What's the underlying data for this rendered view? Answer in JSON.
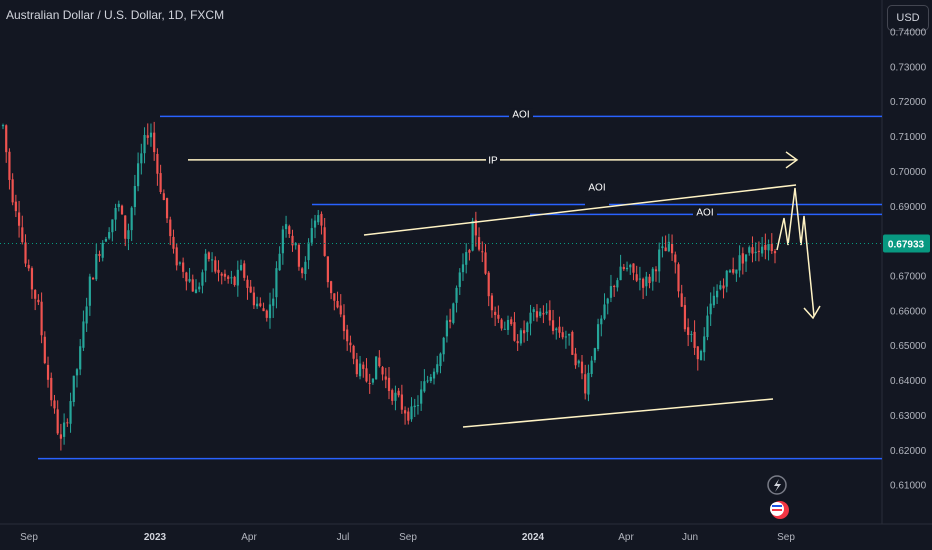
{
  "header": {
    "title": "Australian Dollar / U.S. Dollar, 1D, FXCM",
    "currency_button": "USD"
  },
  "colors": {
    "background": "#131722",
    "up_candle": "#26a69a",
    "down_candle": "#ef5350",
    "aoi_line": "#2962ff",
    "trend_line": "#fff3c4",
    "price_tag": "#089981"
  },
  "icons": [
    "lightning-icon",
    "flag-icon"
  ],
  "chart_data": {
    "type": "candlestick",
    "symbol": "AUDUSD",
    "interval": "1D",
    "y_axis": {
      "ticks": [
        "0.74000",
        "0.73000",
        "0.72000",
        "0.71000",
        "0.70000",
        "0.69000",
        "0.68000",
        "0.67000",
        "0.66000",
        "0.65000",
        "0.64000",
        "0.63000",
        "0.62000",
        "0.61000"
      ],
      "ylim": [
        0.6,
        0.742
      ]
    },
    "x_axis": {
      "ticks": [
        "Sep",
        "2023",
        "Apr",
        "Jul",
        "Sep",
        "2024",
        "Apr",
        "Jun",
        "Sep"
      ],
      "bold_ticks": [
        "2023",
        "2024"
      ]
    },
    "current_price": "0.67933",
    "price_path": [
      [
        0.0,
        0.713
      ],
      [
        0.01,
        0.695
      ],
      [
        0.02,
        0.688
      ],
      [
        0.03,
        0.672
      ],
      [
        0.045,
        0.662
      ],
      [
        0.055,
        0.645
      ],
      [
        0.065,
        0.632
      ],
      [
        0.075,
        0.622
      ],
      [
        0.085,
        0.632
      ],
      [
        0.1,
        0.648
      ],
      [
        0.11,
        0.666
      ],
      [
        0.125,
        0.678
      ],
      [
        0.14,
        0.686
      ],
      [
        0.15,
        0.69
      ],
      [
        0.16,
        0.68
      ],
      [
        0.17,
        0.695
      ],
      [
        0.18,
        0.705
      ],
      [
        0.19,
        0.714
      ],
      [
        0.2,
        0.7
      ],
      [
        0.21,
        0.69
      ],
      [
        0.22,
        0.676
      ],
      [
        0.235,
        0.672
      ],
      [
        0.25,
        0.665
      ],
      [
        0.265,
        0.676
      ],
      [
        0.28,
        0.67
      ],
      [
        0.3,
        0.668
      ],
      [
        0.31,
        0.672
      ],
      [
        0.32,
        0.665
      ],
      [
        0.335,
        0.66
      ],
      [
        0.345,
        0.66
      ],
      [
        0.355,
        0.672
      ],
      [
        0.365,
        0.688
      ],
      [
        0.375,
        0.68
      ],
      [
        0.39,
        0.67
      ],
      [
        0.4,
        0.685
      ],
      [
        0.41,
        0.688
      ],
      [
        0.42,
        0.67
      ],
      [
        0.43,
        0.662
      ],
      [
        0.44,
        0.656
      ],
      [
        0.455,
        0.645
      ],
      [
        0.47,
        0.64
      ],
      [
        0.485,
        0.645
      ],
      [
        0.5,
        0.638
      ],
      [
        0.515,
        0.633
      ],
      [
        0.53,
        0.63
      ],
      [
        0.545,
        0.638
      ],
      [
        0.56,
        0.645
      ],
      [
        0.575,
        0.655
      ],
      [
        0.59,
        0.668
      ],
      [
        0.6,
        0.675
      ],
      [
        0.61,
        0.685
      ],
      [
        0.62,
        0.676
      ],
      [
        0.63,
        0.665
      ],
      [
        0.64,
        0.658
      ],
      [
        0.655,
        0.655
      ],
      [
        0.67,
        0.652
      ],
      [
        0.685,
        0.658
      ],
      [
        0.7,
        0.66
      ],
      [
        0.715,
        0.655
      ],
      [
        0.73,
        0.653
      ],
      [
        0.745,
        0.645
      ],
      [
        0.755,
        0.638
      ],
      [
        0.765,
        0.65
      ],
      [
        0.78,
        0.66
      ],
      [
        0.79,
        0.668
      ],
      [
        0.805,
        0.672
      ],
      [
        0.82,
        0.67
      ],
      [
        0.835,
        0.668
      ],
      [
        0.85,
        0.676
      ],
      [
        0.865,
        0.678
      ],
      [
        0.875,
        0.667
      ],
      [
        0.885,
        0.655
      ],
      [
        0.895,
        0.65
      ],
      [
        0.905,
        0.647
      ],
      [
        0.915,
        0.66
      ],
      [
        0.93,
        0.668
      ],
      [
        0.945,
        0.672
      ],
      [
        0.96,
        0.676
      ],
      [
        0.98,
        0.679
      ]
    ],
    "annotations": [
      {
        "kind": "horizontal",
        "label": "AOI",
        "price": 0.7158,
        "color": "#2962ff"
      },
      {
        "kind": "horizontal",
        "label": "AOI",
        "price": 0.6905,
        "color": "#2962ff"
      },
      {
        "kind": "horizontal",
        "label": "AOI",
        "price": 0.6877,
        "color": "#2962ff"
      },
      {
        "kind": "horizontal",
        "label": "",
        "price": 0.6176,
        "color": "#2962ff"
      },
      {
        "kind": "arrow",
        "label": "IP",
        "price": 0.7033,
        "color": "#fff3c4"
      },
      {
        "kind": "trendline",
        "label": "",
        "color": "#fff3c4"
      },
      {
        "kind": "trendline",
        "label": "",
        "color": "#fff3c4"
      },
      {
        "kind": "projection",
        "label": "",
        "color": "#fff3c4"
      }
    ]
  }
}
